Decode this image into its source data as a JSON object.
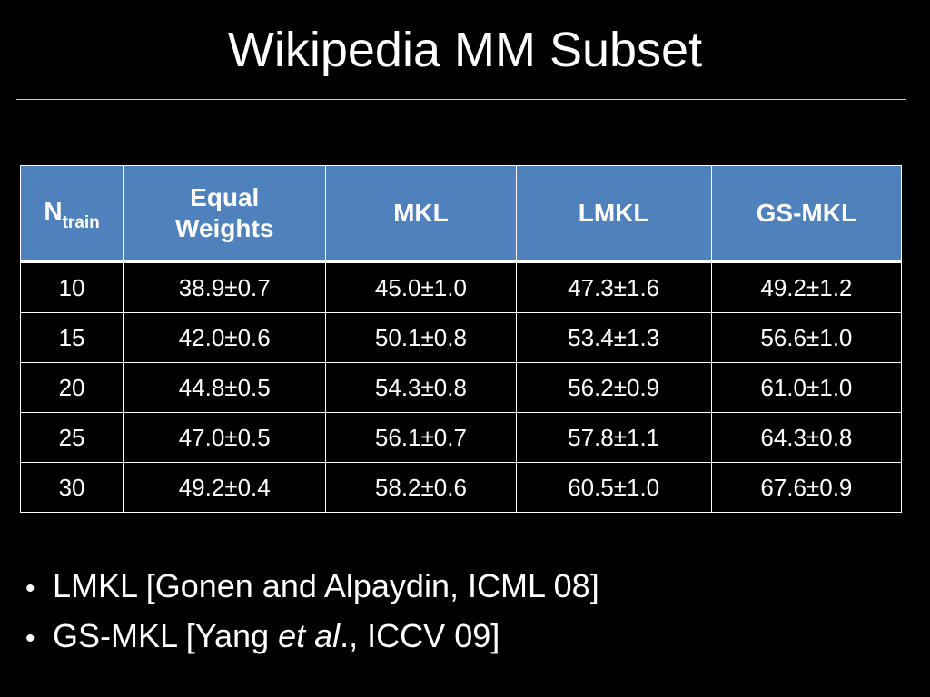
{
  "slide": {
    "title": "Wikipedia MM Subset"
  },
  "table": {
    "header": {
      "n_main": "N",
      "n_sub": "train",
      "equal_line1": "Equal",
      "equal_line2": "Weights",
      "mkl": "MKL",
      "lmkl": "LMKL",
      "gsmkl": "GS-MKL"
    },
    "rows": [
      [
        "10",
        "38.9±0.7",
        "45.0±1.0",
        "47.3±1.6",
        "49.2±1.2"
      ],
      [
        "15",
        "42.0±0.6",
        "50.1±0.8",
        "53.4±1.3",
        "56.6±1.0"
      ],
      [
        "20",
        "44.8±0.5",
        "54.3±0.8",
        "56.2±0.9",
        "61.0±1.0"
      ],
      [
        "25",
        "47.0±0.5",
        "56.1±0.7",
        "57.8±1.1",
        "64.3±0.8"
      ],
      [
        "30",
        "49.2±0.4",
        "58.2±0.6",
        "60.5±1.0",
        "67.6±0.9"
      ]
    ],
    "header_color": "#4f81bd"
  },
  "bullets": {
    "marker": "•",
    "b1": "LMKL [Gonen and Alpaydin, ICML 08]",
    "b2_pre": "GS-MKL [Yang ",
    "b2_italic1": "et al",
    "b2_mid": ".",
    "b2_post": ", ICCV 09]"
  }
}
